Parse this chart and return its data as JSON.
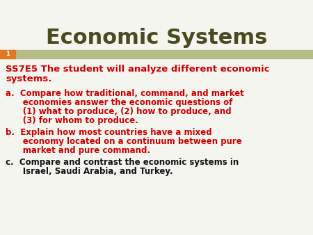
{
  "title": "Economic Systems",
  "title_color": "#4a4a20",
  "title_fontsize": 22,
  "bg_color": "#f5f5f0",
  "banner_color": "#b5bc8a",
  "slide_number": "1",
  "slide_num_color": "#ffffff",
  "slide_num_bg": "#e07820",
  "header_line1": "SS7E5 The student will analyze different economic",
  "header_line2": "systems.",
  "header_color": "#cc0000",
  "item_a_lines": [
    "a.  Compare how traditional, command, and market",
    "      economies answer the economic questions of",
    "      (1) what to produce, (2) how to produce, and",
    "      (3) for whom to produce."
  ],
  "item_b_lines": [
    "b.  Explain how most countries have a mixed",
    "      economy located on a continuum between pure",
    "      market and pure command."
  ],
  "item_c_lines": [
    "c.  Compare and contrast the economic systems in",
    "      Israel, Saudi Arabia, and Turkey."
  ],
  "item_ab_color": "#cc0000",
  "item_c_color": "#111111",
  "text_fontsize": 8.5,
  "header_fontsize": 9.5
}
